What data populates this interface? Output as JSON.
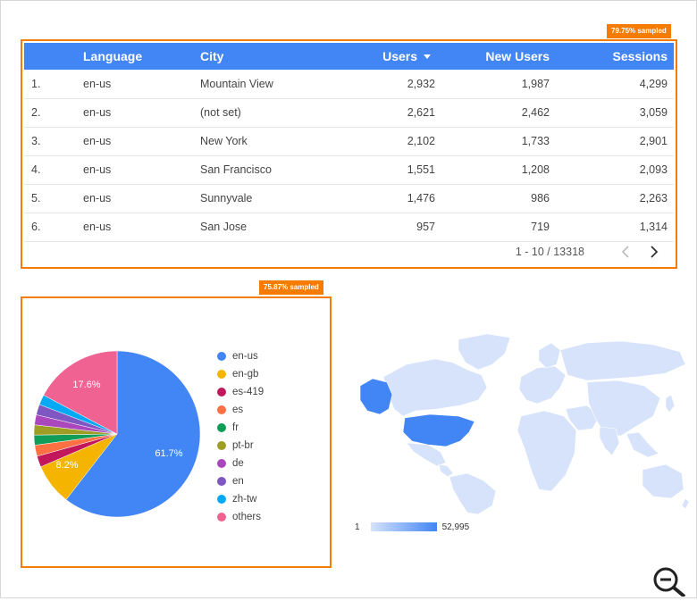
{
  "table": {
    "badge": "79.75% sampled",
    "columns": {
      "language": "Language",
      "city": "City",
      "users": "Users",
      "new_users": "New Users",
      "sessions": "Sessions"
    },
    "rows": [
      {
        "index": "1.",
        "language": "en-us",
        "city": "Mountain View",
        "users": "2,932",
        "new_users": "1,987",
        "sessions": "4,299"
      },
      {
        "index": "2.",
        "language": "en-us",
        "city": "(not set)",
        "users": "2,621",
        "new_users": "2,462",
        "sessions": "3,059"
      },
      {
        "index": "3.",
        "language": "en-us",
        "city": "New York",
        "users": "2,102",
        "new_users": "1,733",
        "sessions": "2,901"
      },
      {
        "index": "4.",
        "language": "en-us",
        "city": "San Francisco",
        "users": "1,551",
        "new_users": "1,208",
        "sessions": "2,093"
      },
      {
        "index": "5.",
        "language": "en-us",
        "city": "Sunnyvale",
        "users": "1,476",
        "new_users": "986",
        "sessions": "2,263"
      },
      {
        "index": "6.",
        "language": "en-us",
        "city": "San Jose",
        "users": "957",
        "new_users": "719",
        "sessions": "1,314"
      }
    ],
    "pagination": "1 - 10 / 13318"
  },
  "pie": {
    "badge": "75.87% sampled",
    "slice_labels": {
      "en_us": "61.7%",
      "en_gb": "8.2%",
      "others": "17.6%"
    },
    "legend": [
      {
        "label": "en-us",
        "color": "#4285f4"
      },
      {
        "label": "en-gb",
        "color": "#f4b400"
      },
      {
        "label": "es-419",
        "color": "#c2185b"
      },
      {
        "label": "es",
        "color": "#ff7043"
      },
      {
        "label": "fr",
        "color": "#0f9d58"
      },
      {
        "label": "pt-br",
        "color": "#9e9d24"
      },
      {
        "label": "de",
        "color": "#ab47bc"
      },
      {
        "label": "en",
        "color": "#7e57c2"
      },
      {
        "label": "zh-tw",
        "color": "#03a9f4"
      },
      {
        "label": "others",
        "color": "#f06292"
      }
    ]
  },
  "map": {
    "scale_min": "1",
    "scale_max": "52,995"
  },
  "icons": {
    "sort": "sort-desc-icon",
    "prev": "chevron-left-icon",
    "next": "chevron-right-icon",
    "zoom": "zoom-out-icon"
  }
}
